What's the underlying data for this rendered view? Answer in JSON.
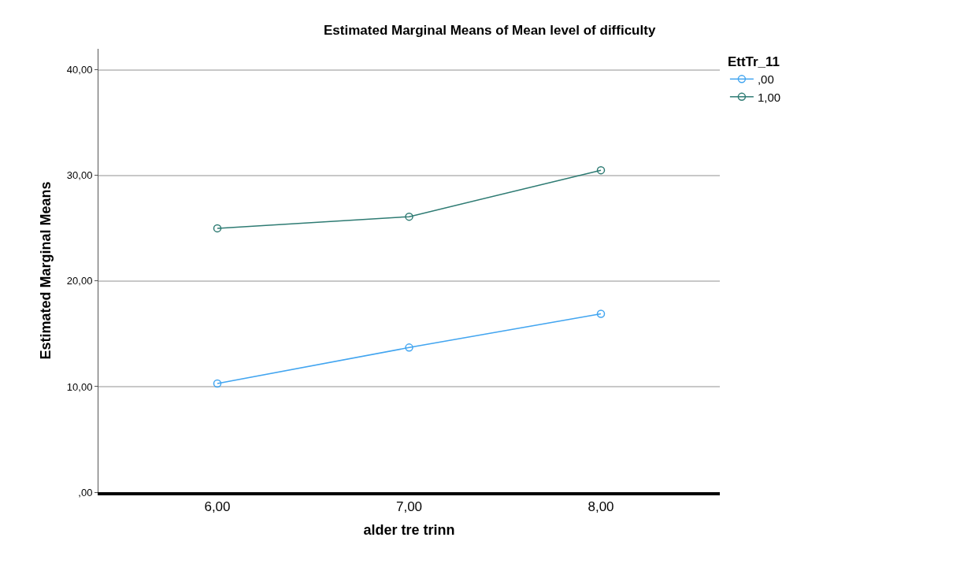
{
  "chart_data": {
    "type": "line",
    "title": "Estimated Marginal Means of Mean level of difficulty",
    "xlabel": "alder tre trinn",
    "ylabel": "Estimated Marginal Means",
    "legend_title": "EttTr_11",
    "categories": [
      "6,00",
      "7,00",
      "8,00"
    ],
    "series": [
      {
        "name": ",00",
        "color": "#42a5f0",
        "values": [
          10.3,
          13.7,
          16.9
        ]
      },
      {
        "name": "1,00",
        "color": "#2e7b73",
        "values": [
          25.0,
          26.1,
          30.5
        ]
      }
    ],
    "ylim": [
      0,
      42
    ],
    "yticks": [
      {
        "value": 0,
        "label": ",00"
      },
      {
        "value": 10,
        "label": "10,00"
      },
      {
        "value": 20,
        "label": "20,00"
      },
      {
        "value": 30,
        "label": "30,00"
      },
      {
        "value": 40,
        "label": "40,00"
      }
    ],
    "grid": "y",
    "legend": "top right",
    "marker": "circle",
    "line_style": "solid"
  }
}
